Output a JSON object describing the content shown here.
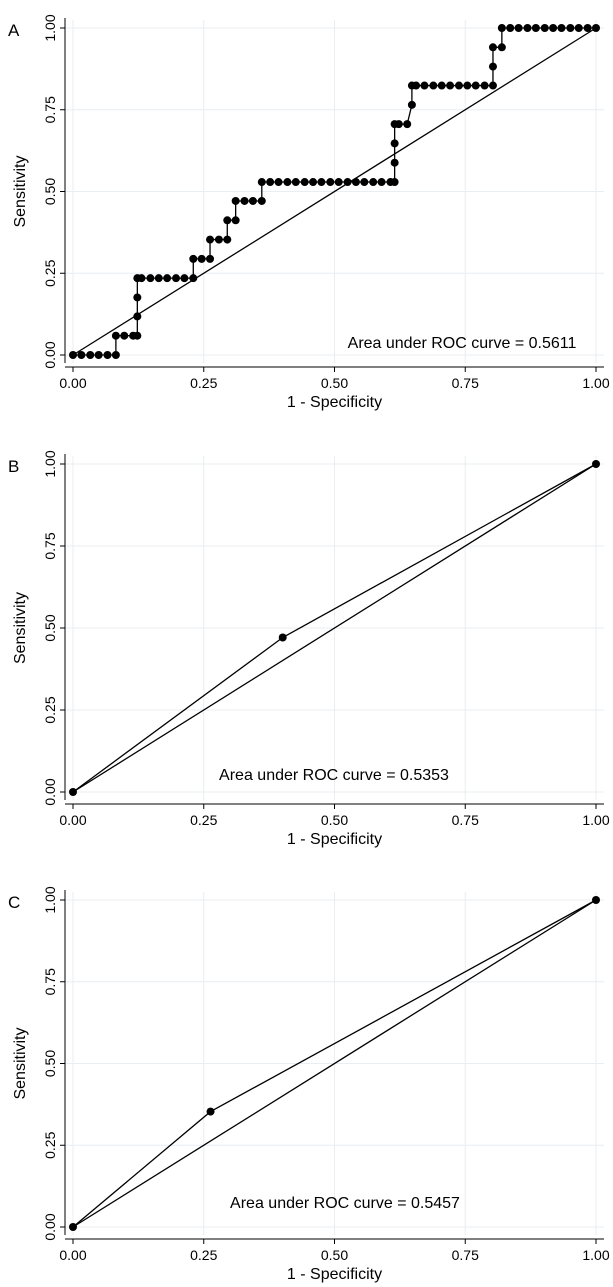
{
  "chart_data": [
    {
      "type": "line",
      "panel_label": "A",
      "xlabel": "1 - Specificity",
      "ylabel": "Sensitivity",
      "xlim": [
        0,
        1
      ],
      "ylim": [
        0,
        1
      ],
      "xticks": [
        "0.00",
        "0.25",
        "0.50",
        "0.75",
        "1.00"
      ],
      "yticks": [
        "0.00",
        "0.25",
        "0.50",
        "0.75",
        "1.00"
      ],
      "grid": true,
      "reference_line": true,
      "annotation": "Area under ROC curve = 0.5611",
      "x": [
        0.0,
        0.016,
        0.033,
        0.049,
        0.066,
        0.082,
        0.082,
        0.098,
        0.115,
        0.123,
        0.123,
        0.123,
        0.123,
        0.131,
        0.148,
        0.164,
        0.18,
        0.197,
        0.213,
        0.23,
        0.23,
        0.246,
        0.262,
        0.262,
        0.279,
        0.295,
        0.295,
        0.311,
        0.311,
        0.328,
        0.344,
        0.361,
        0.361,
        0.377,
        0.393,
        0.41,
        0.426,
        0.443,
        0.459,
        0.475,
        0.492,
        0.508,
        0.525,
        0.541,
        0.557,
        0.574,
        0.59,
        0.607,
        0.615,
        0.615,
        0.615,
        0.615,
        0.623,
        0.639,
        0.648,
        0.648,
        0.656,
        0.672,
        0.689,
        0.705,
        0.721,
        0.738,
        0.754,
        0.77,
        0.787,
        0.803,
        0.803,
        0.803,
        0.82,
        0.82,
        0.836,
        0.852,
        0.869,
        0.885,
        0.902,
        0.918,
        0.934,
        0.951,
        0.967,
        0.984,
        1.0
      ],
      "y": [
        0.0,
        0.0,
        0.0,
        0.0,
        0.0,
        0.0,
        0.059,
        0.059,
        0.059,
        0.059,
        0.118,
        0.176,
        0.235,
        0.235,
        0.235,
        0.235,
        0.235,
        0.235,
        0.235,
        0.235,
        0.294,
        0.294,
        0.294,
        0.353,
        0.353,
        0.353,
        0.412,
        0.412,
        0.471,
        0.471,
        0.471,
        0.471,
        0.529,
        0.529,
        0.529,
        0.529,
        0.529,
        0.529,
        0.529,
        0.529,
        0.529,
        0.529,
        0.529,
        0.529,
        0.529,
        0.529,
        0.529,
        0.529,
        0.529,
        0.588,
        0.647,
        0.706,
        0.706,
        0.706,
        0.765,
        0.824,
        0.824,
        0.824,
        0.824,
        0.824,
        0.824,
        0.824,
        0.824,
        0.824,
        0.824,
        0.824,
        0.882,
        0.941,
        0.941,
        1.0,
        1.0,
        1.0,
        1.0,
        1.0,
        1.0,
        1.0,
        1.0,
        1.0,
        1.0,
        1.0,
        1.0
      ]
    },
    {
      "type": "line",
      "panel_label": "B",
      "xlabel": "1 - Specificity",
      "ylabel": "Sensitivity",
      "xlim": [
        0,
        1
      ],
      "ylim": [
        0,
        1
      ],
      "xticks": [
        "0.00",
        "0.25",
        "0.50",
        "0.75",
        "1.00"
      ],
      "yticks": [
        "0.00",
        "0.25",
        "0.50",
        "0.75",
        "1.00"
      ],
      "grid": true,
      "reference_line": true,
      "annotation": "Area under ROC curve = 0.5353",
      "x": [
        0.0,
        0.401,
        1.0
      ],
      "y": [
        0.0,
        0.471,
        1.0
      ]
    },
    {
      "type": "line",
      "panel_label": "C",
      "xlabel": "1 - Specificity",
      "ylabel": "Sensitivity",
      "xlim": [
        0,
        1
      ],
      "ylim": [
        0,
        1
      ],
      "xticks": [
        "0.00",
        "0.25",
        "0.50",
        "0.75",
        "1.00"
      ],
      "yticks": [
        "0.00",
        "0.25",
        "0.50",
        "0.75",
        "1.00"
      ],
      "grid": true,
      "reference_line": true,
      "annotation": "Area under ROC curve = 0.5457",
      "x": [
        0.0,
        0.263,
        1.0
      ],
      "y": [
        0.0,
        0.353,
        1.0
      ]
    }
  ]
}
